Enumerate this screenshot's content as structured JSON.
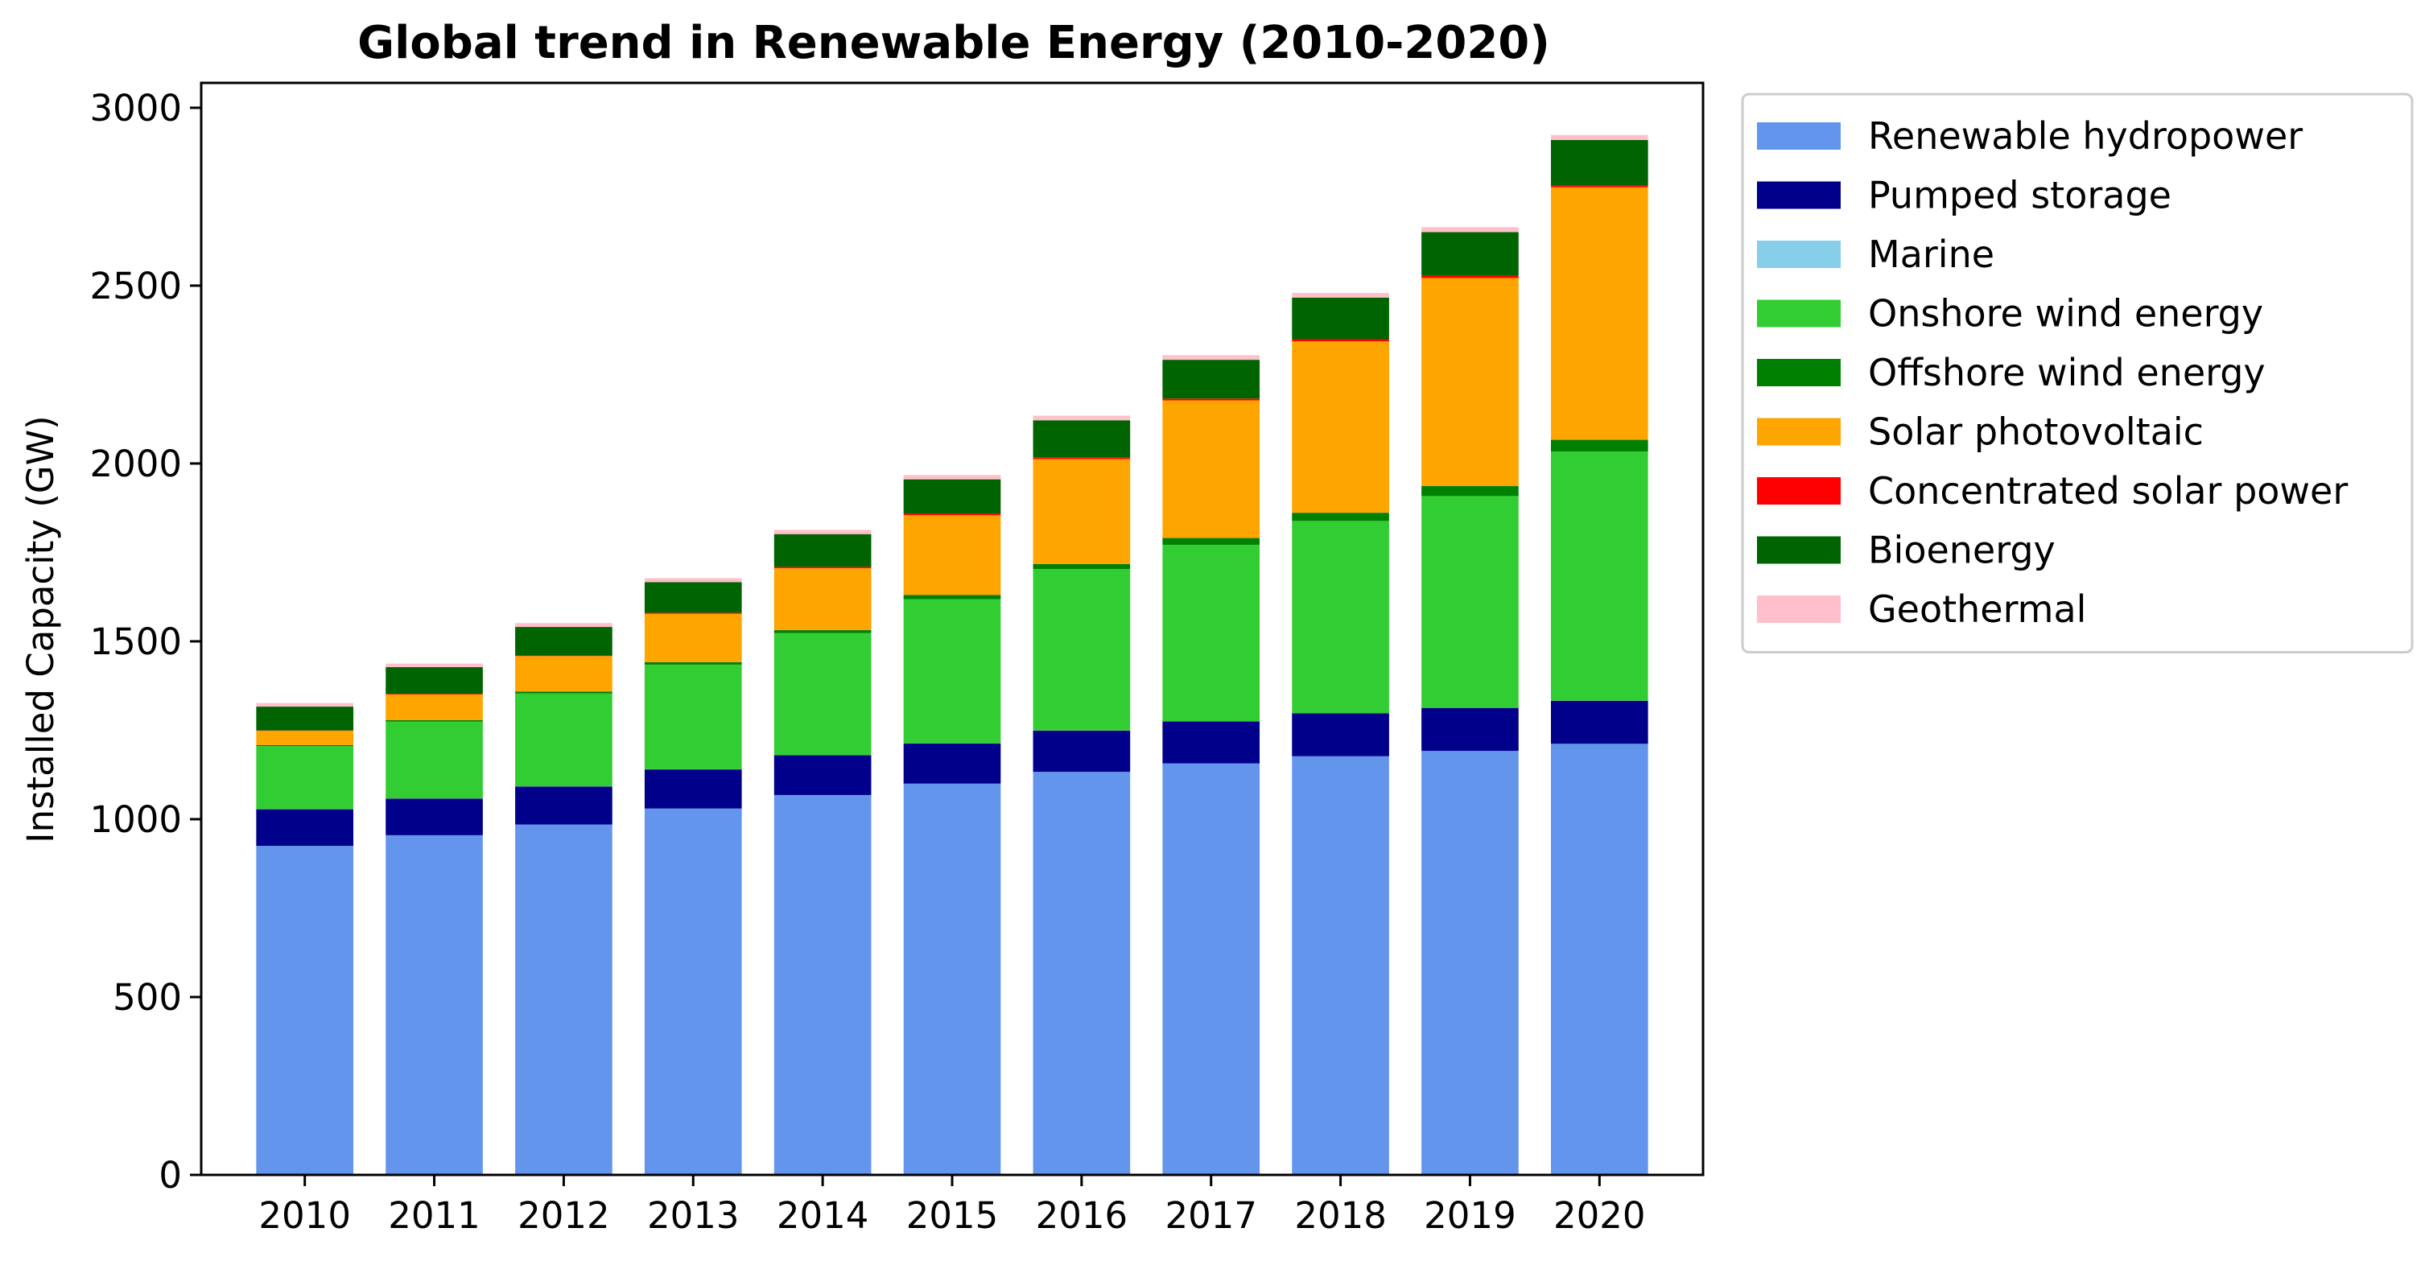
{
  "chart_data": {
    "type": "bar",
    "stacked": true,
    "title": "Global trend in Renewable Energy (2010-2020)",
    "xlabel": "",
    "ylabel": "Installed Capacity (GW)",
    "ylim": [
      0,
      3070
    ],
    "yticks": [
      0,
      500,
      1000,
      1500,
      2000,
      2500,
      3000
    ],
    "grid": false,
    "legend_position": "outside-right",
    "categories": [
      "2010",
      "2011",
      "2012",
      "2013",
      "2014",
      "2015",
      "2016",
      "2017",
      "2018",
      "2019",
      "2020"
    ],
    "series": [
      {
        "name": "Renewable hydropower",
        "color": "#6495ED",
        "values": [
          925,
          955,
          985,
          1030,
          1068,
          1100,
          1133,
          1157,
          1177,
          1192,
          1212
        ]
      },
      {
        "name": "Pumped storage",
        "color": "#00008B",
        "values": [
          103,
          103,
          107,
          110,
          112,
          113,
          116,
          118,
          121,
          121,
          121
        ]
      },
      {
        "name": "Marine",
        "color": "#87CEEB",
        "values": [
          0.5,
          0.5,
          0.5,
          0.5,
          0.5,
          0.5,
          0.5,
          0.5,
          0.5,
          0.5,
          0.5
        ]
      },
      {
        "name": "Onshore wind energy",
        "color": "#32CD32",
        "values": [
          177,
          216,
          261,
          294,
          343,
          405,
          454,
          496,
          540,
          595,
          700
        ]
      },
      {
        "name": "Offshore wind energy",
        "color": "#008000",
        "values": [
          3,
          4,
          5,
          7,
          8,
          12,
          14,
          19,
          23,
          28,
          33
        ]
      },
      {
        "name": "Solar photovoltaic",
        "color": "#FFA500",
        "values": [
          40,
          72,
          100,
          136,
          174,
          224,
          295,
          387,
          482,
          585,
          710
        ]
      },
      {
        "name": "Concentrated solar power",
        "color": "#FF0000",
        "values": [
          1,
          2,
          2,
          3,
          4,
          5,
          5,
          5,
          6,
          6,
          6
        ]
      },
      {
        "name": "Bioenergy",
        "color": "#006400",
        "values": [
          67,
          75,
          80,
          86,
          92,
          96,
          104,
          109,
          117,
          123,
          127
        ]
      },
      {
        "name": "Geothermal",
        "color": "#FFC0CB",
        "values": [
          10,
          10,
          11,
          11,
          12,
          12,
          13,
          13,
          13,
          14,
          14
        ]
      }
    ]
  }
}
